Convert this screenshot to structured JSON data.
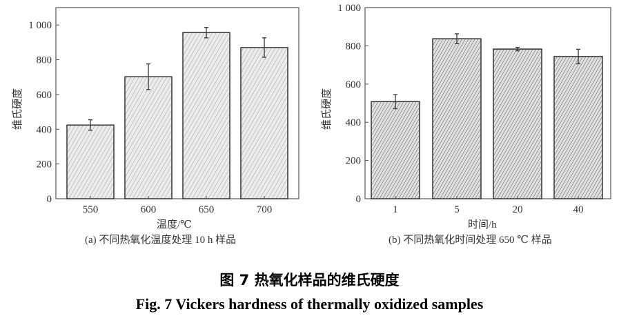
{
  "chart_data": [
    {
      "type": "bar",
      "categories": [
        "550",
        "600",
        "650",
        "700"
      ],
      "values": [
        424,
        702,
        956,
        870
      ],
      "errors": [
        30,
        74,
        30,
        56
      ],
      "xlabel": "温度/℃",
      "ylabel": "维氏硬度",
      "ylim": [
        0,
        1100
      ],
      "yticks": [
        0,
        200,
        400,
        600,
        800,
        1000
      ],
      "ytick_labels": [
        "0",
        "200",
        "400",
        "600",
        "800",
        "1 000"
      ],
      "caption": "(a) 不同热氧化温度处理 10 h 样品",
      "bar_fill": "#e6e6e6",
      "grid": false
    },
    {
      "type": "bar",
      "categories": [
        "1",
        "5",
        "20",
        "40"
      ],
      "values": [
        508,
        837,
        783,
        744
      ],
      "errors": [
        37,
        26,
        9,
        38
      ],
      "xlabel": "时间/h",
      "ylabel": "维氏硬度",
      "ylim": [
        0,
        1000
      ],
      "yticks": [
        0,
        200,
        400,
        600,
        800,
        1000
      ],
      "ytick_labels": [
        "0",
        "200",
        "400",
        "600",
        "800",
        "1 000"
      ],
      "caption": "(b) 不同热氧化时间处理 650 ℃ 样品",
      "bar_fill": "#d0d0d0",
      "grid": false
    }
  ],
  "figure": {
    "title_cn": "图  7  热氧化样品的维氏硬度",
    "title_en": "Fig. 7    Vickers hardness of thermally oxidized samples"
  }
}
